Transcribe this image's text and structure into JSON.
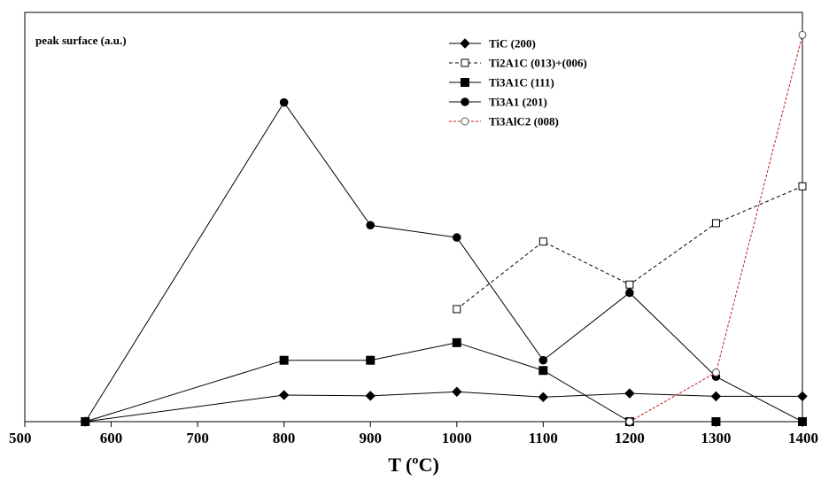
{
  "chart_data": {
    "type": "line",
    "title": "",
    "xlabel": "T (ºC)",
    "ylabel": "peak surface (a.u.)",
    "xlim": [
      500,
      1400
    ],
    "ylim": [
      0,
      100
    ],
    "xticks": [
      500,
      600,
      700,
      800,
      900,
      1000,
      1100,
      1200,
      1300,
      1400
    ],
    "grid": false,
    "legend_position": "top-right",
    "series": [
      {
        "name": "TiC (200)",
        "marker": "diamond-filled",
        "line_style": "solid",
        "color": "#000000",
        "x": [
          570,
          800,
          900,
          1000,
          1100,
          1200,
          1300,
          1400
        ],
        "y": [
          0,
          6.5,
          6.3,
          7.3,
          6.0,
          6.9,
          6.2,
          6.2
        ]
      },
      {
        "name": "Ti2A1C (013)+(006)",
        "marker": "square-open",
        "line_style": "dashed",
        "color": "#000000",
        "x": [
          1000,
          1100,
          1200,
          1300,
          1400
        ],
        "y": [
          27.5,
          44.0,
          33.5,
          48.5,
          57.5
        ]
      },
      {
        "name": "Ti3A1C (111)",
        "marker": "square-filled",
        "line_style": "solid",
        "color": "#000000",
        "x": [
          570,
          800,
          900,
          1000,
          1100,
          1200,
          1300,
          1400
        ],
        "y": [
          0,
          15.0,
          15.0,
          19.3,
          12.5,
          0,
          0,
          0
        ]
      },
      {
        "name": "Ti3A1 (201)",
        "marker": "circle-filled",
        "line_style": "solid",
        "color": "#000000",
        "x": [
          570,
          800,
          900,
          1000,
          1100,
          1200,
          1300,
          1400
        ],
        "y": [
          0,
          78.0,
          48.0,
          45.0,
          15.0,
          31.5,
          11.0,
          0
        ]
      },
      {
        "name": "Ti3AlC2 (008)",
        "marker": "circle-open",
        "line_style": "dotted",
        "color": "#cc1111",
        "x": [
          1200,
          1300,
          1400
        ],
        "y": [
          0,
          12.0,
          94.5
        ]
      }
    ]
  }
}
